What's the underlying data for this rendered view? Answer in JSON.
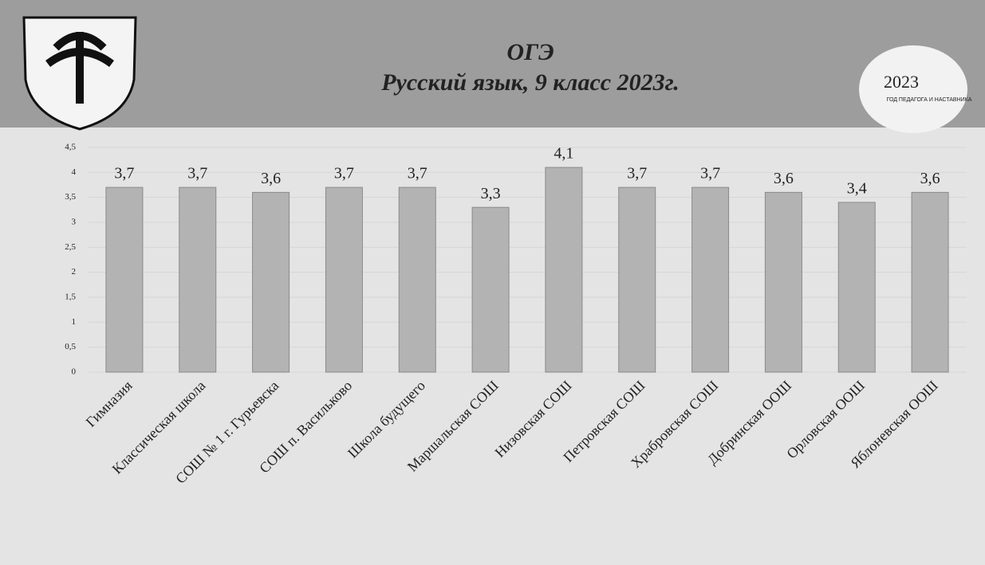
{
  "chart_data": {
    "type": "bar",
    "title": "ОГЭ",
    "subtitle": "Русский язык, 9 класс 2023г.",
    "badge": "2023",
    "badge_text": "ГОД ПЕДАГОГА И НАСТАВНИКА",
    "categories": [
      "Гимназия",
      "Классическая школа",
      "СОШ № 1 г. Гурьевска",
      "СОШ п. Васильково",
      "Школа будущего",
      "Маршальская СОШ",
      "Низовская СОШ",
      "Петровская СОШ",
      "Храбровская СОШ",
      "Добринская ООШ",
      "Орловская ООШ",
      "Яблоневская ООШ"
    ],
    "values": [
      3.7,
      3.7,
      3.6,
      3.7,
      3.7,
      3.3,
      4.1,
      3.7,
      3.7,
      3.6,
      3.4,
      3.6
    ],
    "value_labels": [
      "3,7",
      "3,7",
      "3,6",
      "3,7",
      "3,7",
      "3,3",
      "4,1",
      "3,7",
      "3,7",
      "3,6",
      "3,4",
      "3,6"
    ],
    "color": "#b3b3b3",
    "ylim": [
      0,
      4.5
    ],
    "yticks": [
      0,
      {
        "value": 0.5,
        "label": "0,5"
      },
      1,
      {
        "value": 1.5,
        "label": "1,5"
      },
      2,
      {
        "value": 2.5,
        "label": "2,5"
      },
      3,
      {
        "value": 3.5,
        "label": "3,5"
      },
      4,
      {
        "value": 4.5,
        "label": "4,5"
      }
    ],
    "grid": true
  }
}
